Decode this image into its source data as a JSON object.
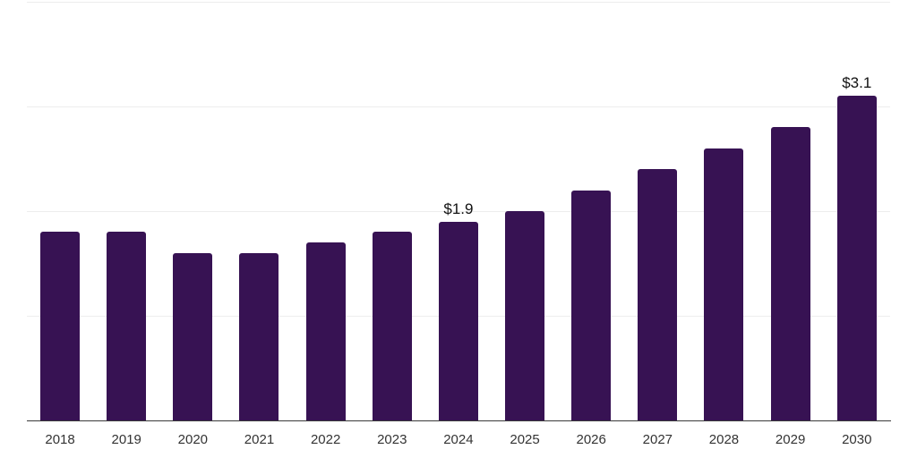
{
  "colors": {
    "bar": "#371253",
    "gridline": "#ededed",
    "axis_line": "#3a3a3a",
    "tick_label": "#333333",
    "data_label": "#111111",
    "background": "#ffffff"
  },
  "chart_data": {
    "type": "bar",
    "title": "",
    "subtitle": "",
    "xlabel": "",
    "ylabel": "",
    "categories": [
      "2018",
      "2019",
      "2020",
      "2021",
      "2022",
      "2023",
      "2024",
      "2025",
      "2026",
      "2027",
      "2028",
      "2029",
      "2030"
    ],
    "values": [
      1.8,
      1.8,
      1.6,
      1.6,
      1.7,
      1.8,
      1.9,
      2.0,
      2.2,
      2.4,
      2.6,
      2.8,
      3.1
    ],
    "data_labels": [
      "",
      "",
      "",
      "",
      "",
      "",
      "$1.9",
      "",
      "",
      "",
      "",
      "",
      "$3.1"
    ],
    "ylim": [
      0,
      4
    ],
    "gridline_values": [
      1,
      2,
      3,
      4
    ],
    "grid": "horizontal-only",
    "y_axis_tick_labels": "none",
    "legend": "none"
  },
  "layout_hints": {
    "note": "single-series vertical bar chart, white background, no title or axis titles visible"
  }
}
